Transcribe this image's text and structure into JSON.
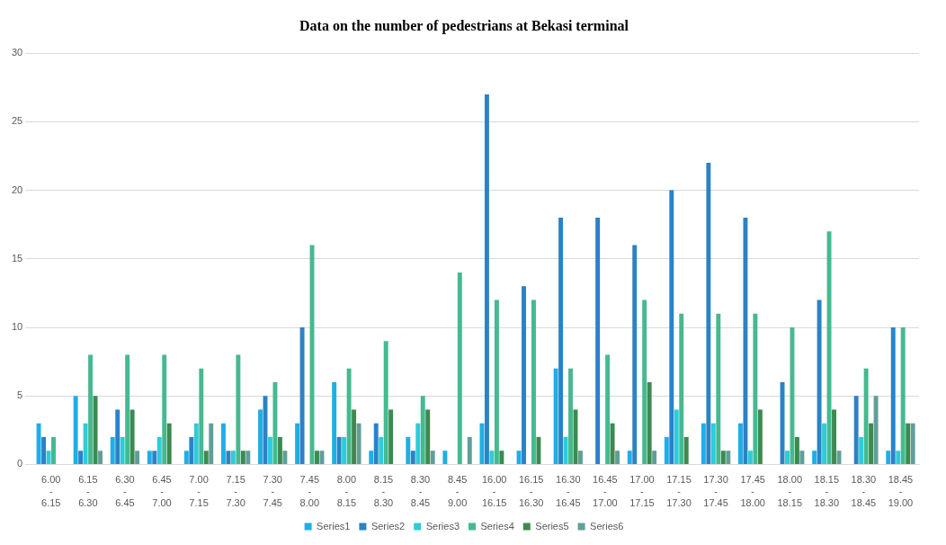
{
  "chart_data": {
    "type": "bar",
    "title": "Data on the number of pedestrians at Bekasi terminal",
    "categories": [
      "6.00 - 6.15",
      "6.15 - 6.30",
      "6.30 - 6.45",
      "6.45 - 7.00",
      "7.00 - 7.15",
      "7.15 - 7.30",
      "7.30 - 7.45",
      "7.45 - 8.00",
      "8.00 - 8.15",
      "8.15 - 8.30",
      "8.30 - 8.45",
      "8.45 - 9.00",
      "16.00 - 16.15",
      "16.15 - 16.30",
      "16.30 - 16.45",
      "16.45 - 17.00",
      "17.00 - 17.15",
      "17.15 - 17.30",
      "17.30 - 17.45",
      "17.45 - 18.00",
      "18.00 - 18.15",
      "18.15 - 18.30",
      "18.30 - 18.45",
      "18.45 - 19.00"
    ],
    "series": [
      {
        "name": "Series1",
        "color": "#1eaee8",
        "values": [
          3,
          5,
          2,
          1,
          1,
          3,
          4,
          3,
          6,
          1,
          2,
          1,
          3,
          1,
          7,
          0,
          1,
          2,
          3,
          3,
          0,
          1,
          0,
          1
        ]
      },
      {
        "name": "Series2",
        "color": "#2b82c6",
        "values": [
          2,
          1,
          4,
          1,
          2,
          1,
          5,
          10,
          2,
          3,
          1,
          0,
          27,
          13,
          18,
          18,
          16,
          20,
          22,
          18,
          6,
          12,
          5,
          10
        ]
      },
      {
        "name": "Series3",
        "color": "#2dccd8",
        "values": [
          1,
          3,
          2,
          2,
          3,
          1,
          2,
          0,
          2,
          2,
          3,
          0,
          1,
          0,
          2,
          0,
          0,
          4,
          3,
          1,
          1,
          3,
          2,
          1
        ]
      },
      {
        "name": "Series4",
        "color": "#45b98f",
        "values": [
          2,
          8,
          8,
          8,
          7,
          8,
          6,
          16,
          7,
          9,
          5,
          14,
          12,
          12,
          7,
          8,
          12,
          11,
          11,
          11,
          10,
          17,
          7,
          10
        ]
      },
      {
        "name": "Series5",
        "color": "#3d8a50",
        "values": [
          0,
          5,
          4,
          3,
          1,
          1,
          2,
          1,
          4,
          4,
          4,
          0,
          1,
          2,
          4,
          3,
          6,
          2,
          1,
          4,
          2,
          4,
          3,
          3
        ]
      },
      {
        "name": "Series6",
        "color": "#5f9f99",
        "values": [
          0,
          1,
          1,
          0,
          3,
          1,
          1,
          1,
          3,
          0,
          1,
          2,
          0,
          0,
          1,
          1,
          1,
          0,
          1,
          0,
          1,
          1,
          5,
          3
        ]
      }
    ],
    "ylim": [
      0,
      30
    ],
    "yticks": [
      0,
      5,
      10,
      15,
      20,
      25,
      30
    ],
    "grid": "y",
    "legend": "bottom"
  }
}
